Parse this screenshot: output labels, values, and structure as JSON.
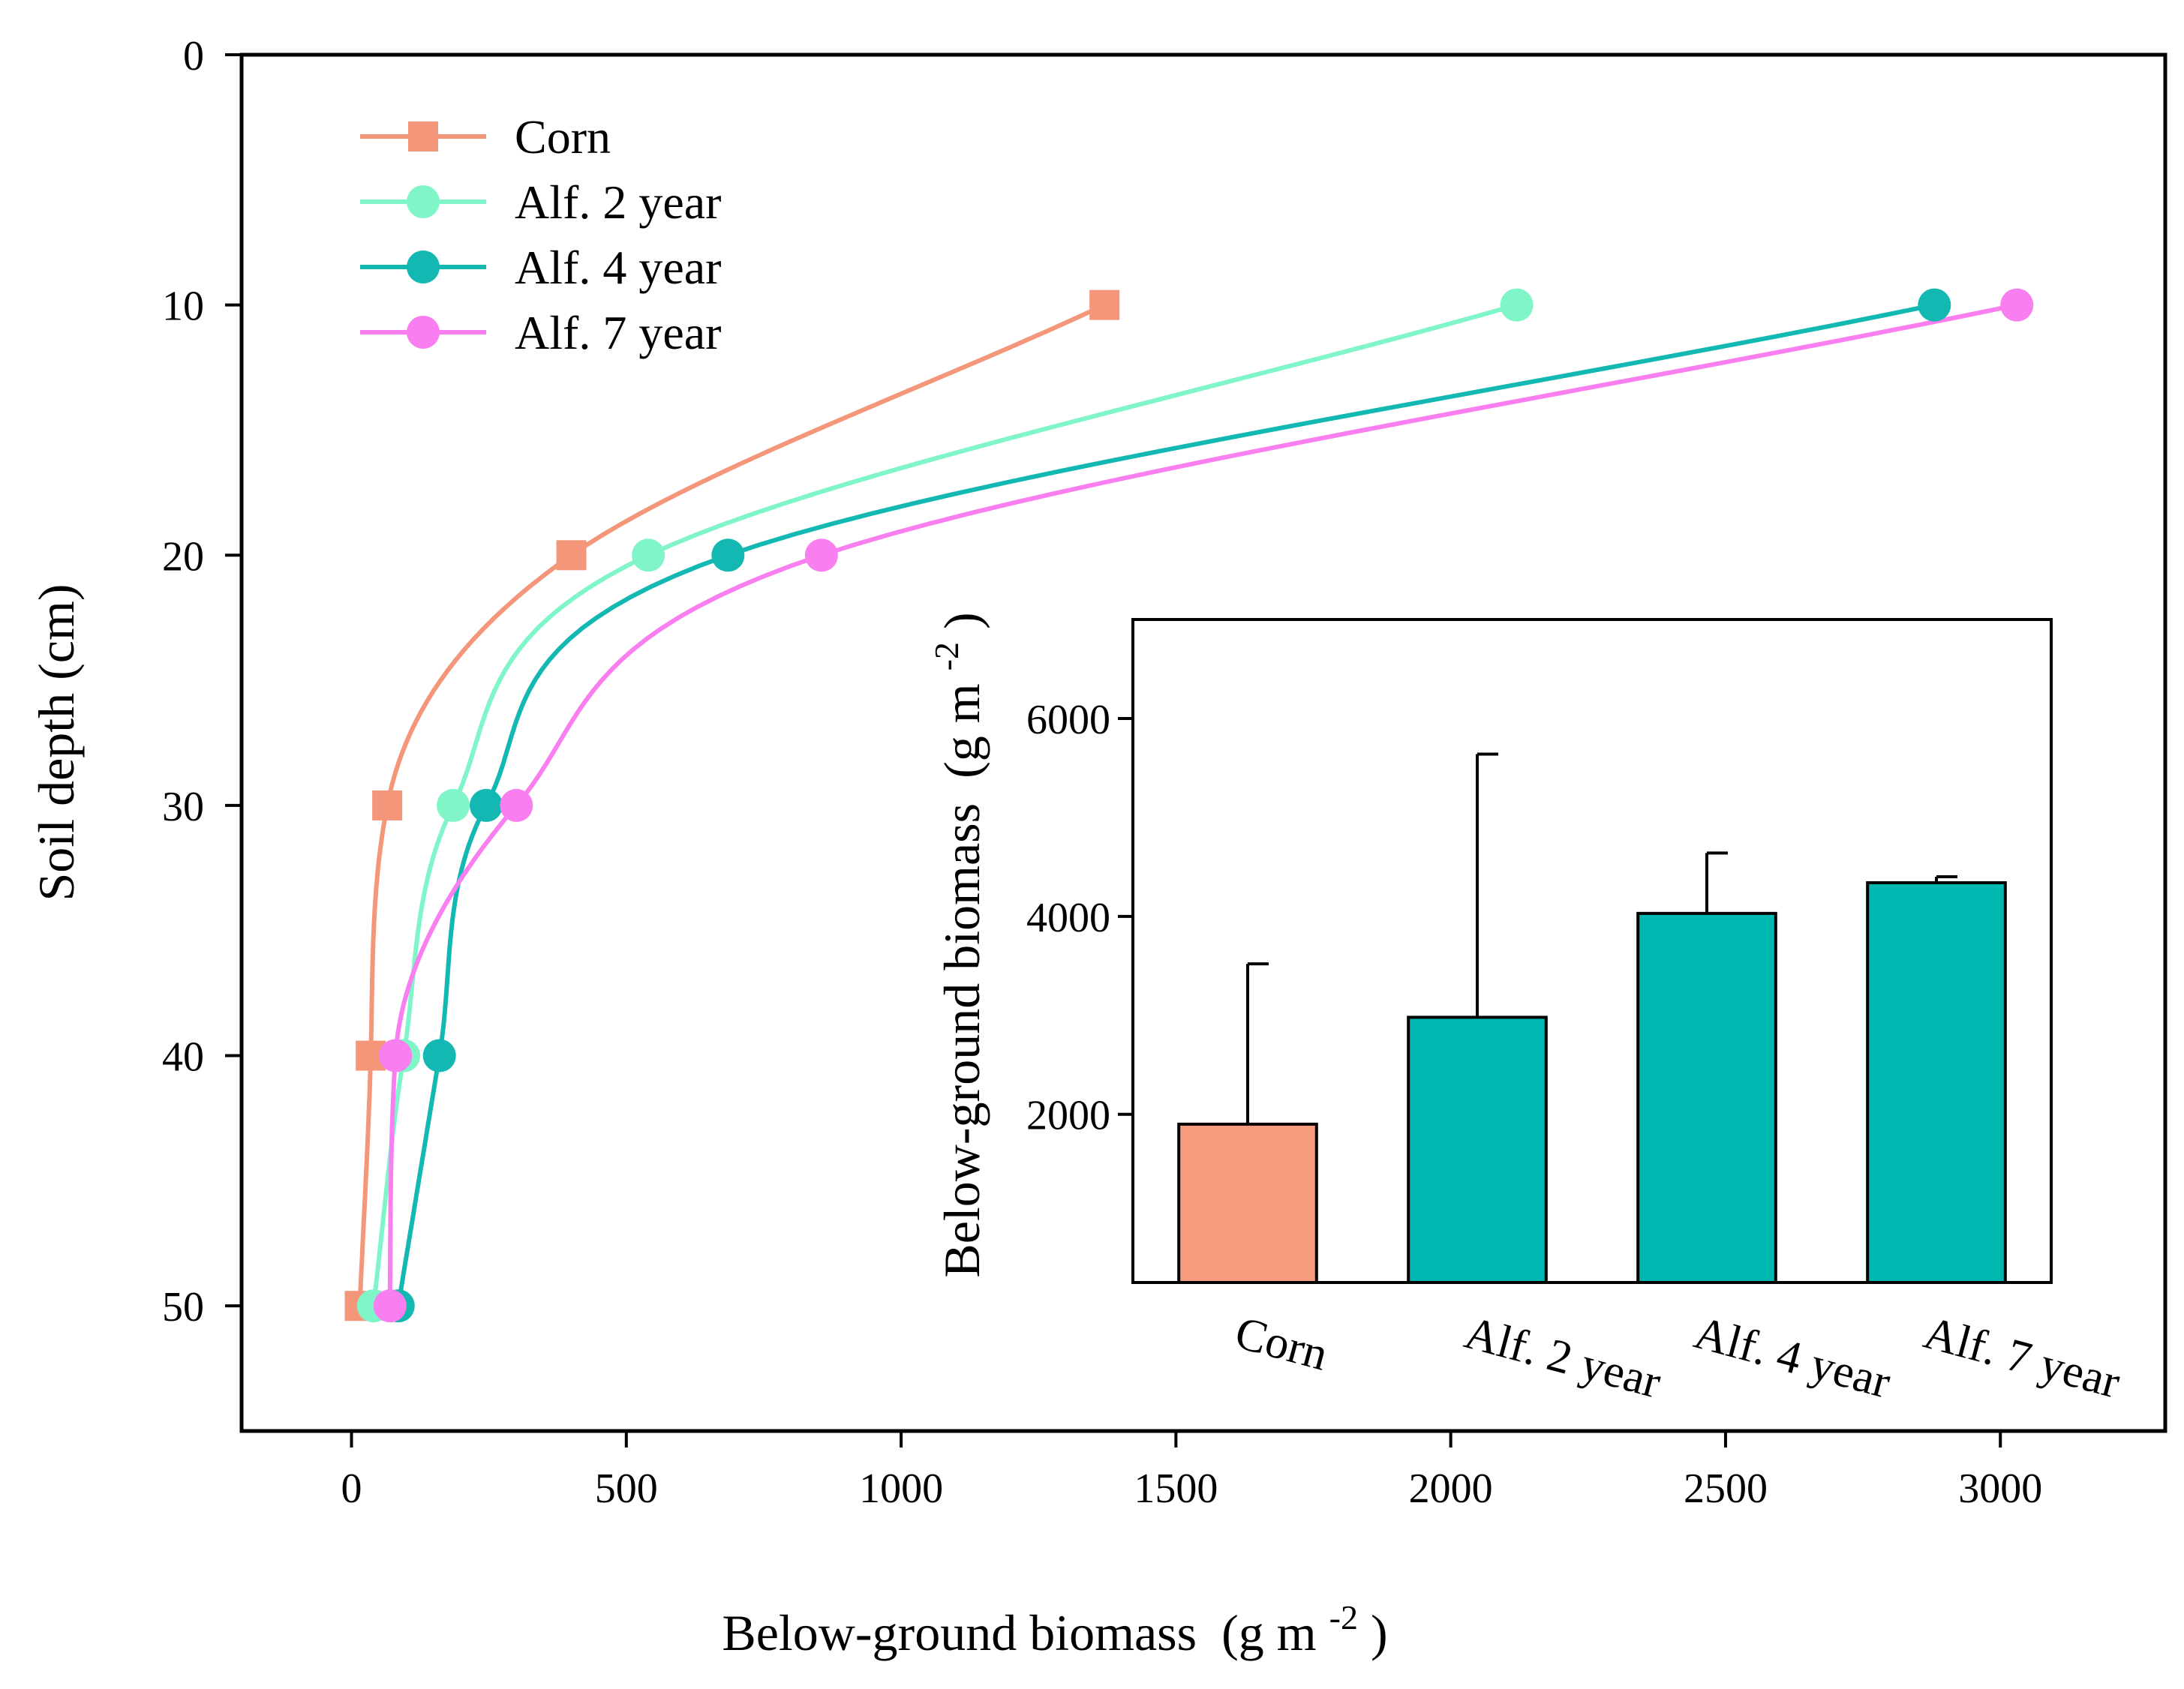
{
  "chart_data": [
    {
      "type": "line",
      "title": "",
      "xlabel": "Below-ground biomass",
      "xlabel_unit_base": "(g m",
      "xlabel_unit_exp": "-2",
      "xlabel_unit_close": ")",
      "ylabel": "Soil depth (cm)",
      "xlim": [
        -200,
        3300
      ],
      "ylim": [
        55,
        0
      ],
      "y_inverted": true,
      "xticks": [
        0,
        500,
        1000,
        1500,
        2000,
        2500,
        3000
      ],
      "xtick_labels": [
        "0",
        "500",
        "1000",
        "1500",
        "2000",
        "2500",
        "3000"
      ],
      "yticks": [
        0,
        10,
        20,
        30,
        40,
        50
      ],
      "ytick_labels": [
        "0",
        "10",
        "20",
        "30",
        "40",
        "50"
      ],
      "legend_position": "top-left",
      "grid": false,
      "series": [
        {
          "name": "Corn",
          "color": "#F4967A",
          "marker": "square",
          "x": [
            1370,
            400,
            65,
            35,
            15
          ],
          "y": [
            10,
            20,
            30,
            40,
            50
          ]
        },
        {
          "name": "Alf. 2 year",
          "color": "#7FF5C8",
          "marker": "circle",
          "x": [
            2120,
            540,
            185,
            95,
            40
          ],
          "y": [
            10,
            20,
            30,
            40,
            50
          ]
        },
        {
          "name": "Alf. 4 year",
          "color": "#13B8B2",
          "marker": "circle",
          "x": [
            2880,
            685,
            245,
            160,
            85
          ],
          "y": [
            10,
            20,
            30,
            40,
            50
          ]
        },
        {
          "name": "Alf. 7 year",
          "color": "#F97FF0",
          "marker": "circle",
          "x": [
            3030,
            855,
            300,
            80,
            70
          ],
          "y": [
            10,
            20,
            30,
            40,
            50
          ]
        }
      ]
    },
    {
      "type": "bar",
      "title": "",
      "xlabel": "",
      "ylabel": "Below-ground biomass",
      "ylabel_unit_base": "(g m",
      "ylabel_unit_exp": "-2",
      "ylabel_unit_close": ")",
      "categories": [
        "Corn",
        "Alf. 2 year",
        "Alf. 4 year",
        "Alf. 7 year"
      ],
      "values": [
        1900,
        2980,
        4030,
        4340
      ],
      "errors": [
        1620,
        2660,
        610,
        60
      ],
      "colors": [
        "#F79C7E",
        "#00B8B2",
        "#00B8B2",
        "#00B8B2"
      ],
      "ylim": [
        300,
        7000
      ],
      "yticks": [
        2000,
        4000,
        6000
      ],
      "ytick_labels": [
        "2000",
        "4000",
        "6000"
      ],
      "grid": false
    }
  ]
}
